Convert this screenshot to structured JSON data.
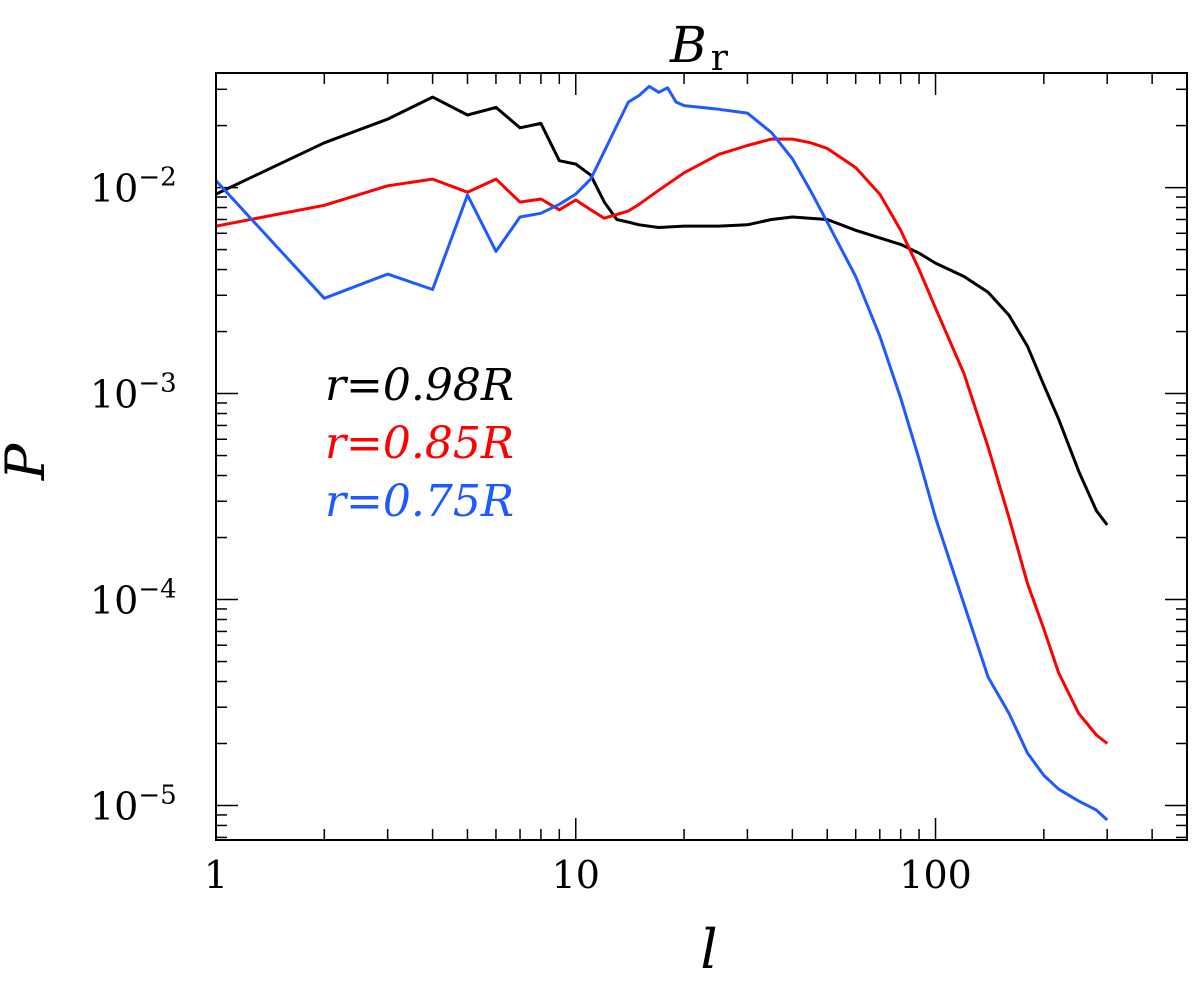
{
  "chart_data": {
    "type": "line",
    "title": "B",
    "title_subscript": "r",
    "xlabel": "l",
    "ylabel": "P",
    "xscale": "log",
    "yscale": "log",
    "xlim": [
      1,
      500
    ],
    "ylim": [
      6.8e-06,
      0.036
    ],
    "x_ticks": [
      {
        "value": 1,
        "label": "1"
      },
      {
        "value": 10,
        "label": "10"
      },
      {
        "value": 100,
        "label": "100"
      }
    ],
    "y_ticks": [
      {
        "value": 1e-05,
        "base": "10",
        "exp": "−5"
      },
      {
        "value": 0.0001,
        "base": "10",
        "exp": "−4"
      },
      {
        "value": 0.001,
        "base": "10",
        "exp": "−3"
      },
      {
        "value": 0.01,
        "base": "10",
        "exp": "−2"
      }
    ],
    "legend_position": "center-left",
    "series": [
      {
        "name": "r=0.98R",
        "color": "#000000",
        "x": [
          1,
          2,
          3,
          4,
          5,
          6,
          7,
          8,
          9,
          10,
          11,
          12,
          13,
          14,
          15,
          17,
          20,
          25,
          30,
          35,
          40,
          50,
          60,
          70,
          80,
          90,
          100,
          120,
          140,
          160,
          180,
          200,
          220,
          250,
          280,
          300
        ],
        "y": [
          0.0093,
          0.0165,
          0.0215,
          0.0275,
          0.0225,
          0.0245,
          0.0195,
          0.0205,
          0.0135,
          0.013,
          0.0115,
          0.0085,
          0.007,
          0.0068,
          0.0066,
          0.0064,
          0.0065,
          0.0065,
          0.0066,
          0.007,
          0.0072,
          0.007,
          0.0062,
          0.0057,
          0.0053,
          0.0048,
          0.0043,
          0.0037,
          0.0031,
          0.0024,
          0.0017,
          0.0011,
          0.00075,
          0.00042,
          0.00027,
          0.00023
        ]
      },
      {
        "name": "r=0.85R",
        "color": "#ff0000",
        "x": [
          1,
          2,
          3,
          4,
          5,
          6,
          7,
          8,
          9,
          10,
          11,
          12,
          13,
          14,
          15,
          17,
          20,
          25,
          30,
          35,
          40,
          45,
          50,
          60,
          70,
          80,
          90,
          100,
          120,
          140,
          160,
          180,
          200,
          220,
          250,
          280,
          300
        ],
        "y": [
          0.0065,
          0.0082,
          0.0102,
          0.011,
          0.0095,
          0.011,
          0.0085,
          0.0088,
          0.0078,
          0.0087,
          0.0078,
          0.0071,
          0.0074,
          0.0077,
          0.0083,
          0.0097,
          0.0118,
          0.0145,
          0.016,
          0.0172,
          0.0172,
          0.0165,
          0.0155,
          0.0125,
          0.0093,
          0.0062,
          0.004,
          0.0026,
          0.00125,
          0.00055,
          0.00025,
          0.00012,
          7.2e-05,
          4.4e-05,
          2.8e-05,
          2.2e-05,
          2e-05
        ]
      },
      {
        "name": "r=0.75R",
        "color": "#1e5aff",
        "x": [
          1,
          2,
          3,
          4,
          5,
          6,
          7,
          8,
          9,
          10,
          11,
          12,
          13,
          14,
          15,
          16,
          17,
          18,
          19,
          20,
          25,
          30,
          35,
          40,
          45,
          50,
          60,
          70,
          80,
          90,
          100,
          120,
          140,
          160,
          180,
          200,
          220,
          250,
          280,
          300
        ],
        "y": [
          0.0108,
          0.0029,
          0.0038,
          0.0032,
          0.0092,
          0.0049,
          0.0072,
          0.0075,
          0.0083,
          0.0093,
          0.011,
          0.015,
          0.02,
          0.026,
          0.028,
          0.031,
          0.029,
          0.0305,
          0.026,
          0.025,
          0.024,
          0.023,
          0.0185,
          0.0138,
          0.0096,
          0.0068,
          0.0037,
          0.0019,
          0.00095,
          0.00048,
          0.00025,
          9.5e-05,
          4.2e-05,
          2.8e-05,
          1.8e-05,
          1.4e-05,
          1.2e-05,
          1.05e-05,
          9.5e-06,
          8.5e-06
        ]
      }
    ]
  }
}
